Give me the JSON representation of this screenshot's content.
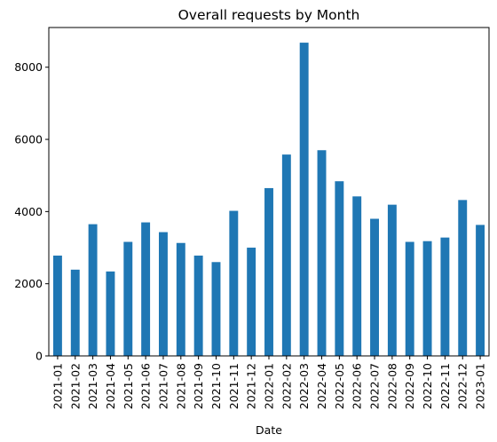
{
  "chart_data": {
    "type": "bar",
    "title": "Overall requests by Month",
    "xlabel": "Date",
    "ylabel": "",
    "ylim": [
      0,
      9100
    ],
    "yticks": [
      0,
      2000,
      4000,
      6000,
      8000
    ],
    "grid": false,
    "legend": "none",
    "bar_color": "#1f77b4",
    "categories": [
      "2021-01",
      "2021-02",
      "2021-03",
      "2021-04",
      "2021-05",
      "2021-06",
      "2021-07",
      "2021-08",
      "2021-09",
      "2021-10",
      "2021-11",
      "2021-12",
      "2022-01",
      "2022-02",
      "2022-03",
      "2022-04",
      "2022-05",
      "2022-06",
      "2022-07",
      "2022-08",
      "2022-09",
      "2022-10",
      "2022-11",
      "2022-12",
      "2023-01"
    ],
    "values": [
      2780,
      2390,
      3650,
      2340,
      3160,
      3700,
      3430,
      3130,
      2780,
      2600,
      4020,
      3000,
      4650,
      5580,
      8680,
      5700,
      4840,
      4420,
      3800,
      4190,
      3160,
      3180,
      3280,
      4320,
      3630
    ]
  }
}
